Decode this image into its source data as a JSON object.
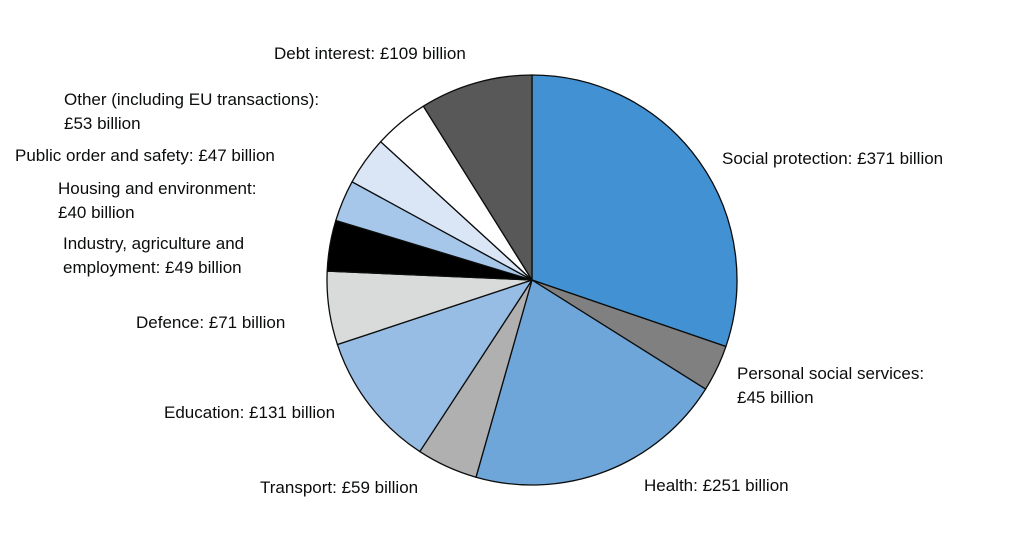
{
  "chart_data": {
    "type": "pie",
    "start_angle_deg": 0,
    "direction": "clockwise",
    "slices": [
      {
        "name": "Social protection",
        "value": 371,
        "color": "#4191d3",
        "lines": [
          "Social protection: £371 billion"
        ]
      },
      {
        "name": "Personal social services",
        "value": 45,
        "color": "#808080",
        "lines": [
          "Personal social services:",
          "£45 billion"
        ]
      },
      {
        "name": "Health",
        "value": 251,
        "color": "#6fa6da",
        "lines": [
          "Health: £251 billion"
        ]
      },
      {
        "name": "Transport",
        "value": 59,
        "color": "#b0b0b0",
        "lines": [
          "Transport: £59 billion"
        ]
      },
      {
        "name": "Education",
        "value": 131,
        "color": "#98bde5",
        "lines": [
          "Education: £131 billion"
        ]
      },
      {
        "name": "Defence",
        "value": 71,
        "color": "#d9dbda",
        "lines": [
          "Defence: £71 billion"
        ]
      },
      {
        "name": "Industry, agriculture and employment",
        "value": 49,
        "color": "#000000",
        "lines": [
          "Industry, agriculture and",
          "employment: £49 billion"
        ]
      },
      {
        "name": "Housing and environment",
        "value": 40,
        "color": "#a6c7ea",
        "lines": [
          "Housing and environment:",
          "£40 billion"
        ]
      },
      {
        "name": "Public order and safety",
        "value": 47,
        "color": "#dae6f5",
        "lines": [
          "Public order and safety: £47 billion"
        ]
      },
      {
        "name": "Other (including EU transactions)",
        "value": 53,
        "color": "#ffffff",
        "lines": [
          "Other (including EU transactions):",
          "£53 billion"
        ]
      },
      {
        "name": "Debt interest",
        "value": 109,
        "color": "#585858",
        "lines": [
          "Debt interest: £109 billion"
        ]
      }
    ]
  }
}
